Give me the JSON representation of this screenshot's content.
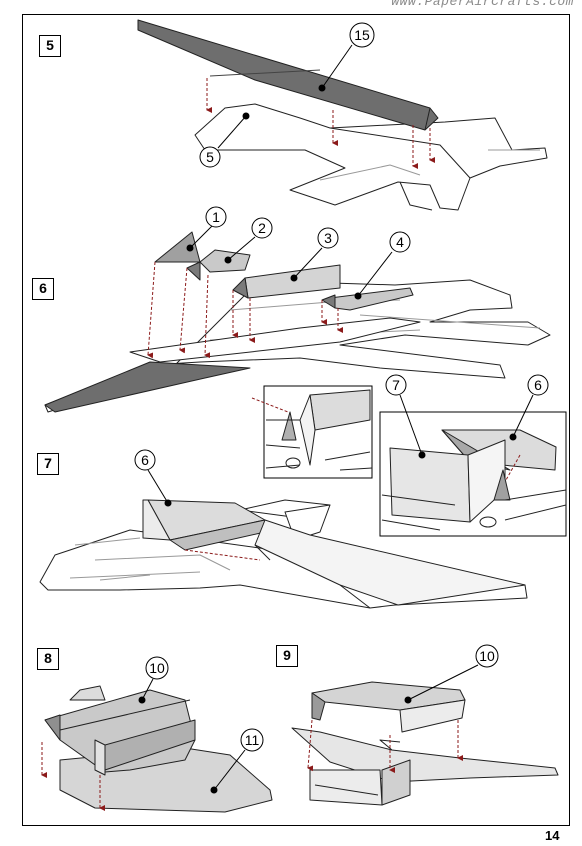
{
  "header": {
    "website": "www.PaperAirCrafts.com"
  },
  "footer": {
    "page_number": "14"
  },
  "steps": [
    {
      "number": "5"
    },
    {
      "number": "6"
    },
    {
      "number": "7"
    },
    {
      "number": "8"
    },
    {
      "number": "9"
    }
  ],
  "callouts": {
    "step5_part15": "15",
    "step5_part5": "5",
    "step6_part1": "1",
    "step6_part2": "2",
    "step6_part3": "3",
    "step6_part4": "4",
    "detail_part7": "7",
    "detail_part6": "6",
    "step7_part6": "6",
    "step8_part10": "10",
    "step8_part11": "11",
    "step9_part10": "10"
  },
  "colors": {
    "dark_part": "#6e6e6e",
    "mid_part": "#b9b9b9",
    "light_part": "#dcdcdc",
    "guide_arrow": "#8b1a1a"
  }
}
